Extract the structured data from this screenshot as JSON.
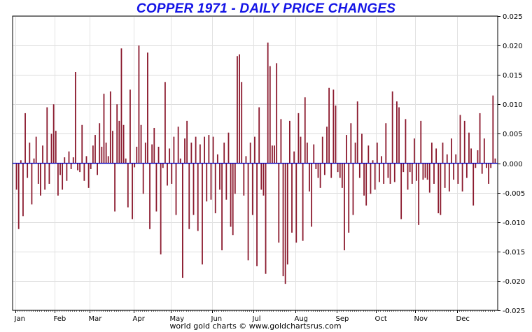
{
  "chart_data": {
    "type": "bar",
    "title": "COPPER 1971 - DAILY PRICE CHANGES",
    "footer": "world gold charts © www.goldchartsrus.com",
    "xlabel": "",
    "ylabel": "",
    "ylim": [
      -0.025,
      0.025
    ],
    "y_ticks": [
      "0.025",
      "0.020",
      "0.015",
      "0.010",
      "0.005",
      "0.000",
      "-0.005",
      "-0.010",
      "-0.015",
      "-0.020",
      "-0.025"
    ],
    "x_tick_labels": [
      "Jan",
      "Feb",
      "Mar",
      "Apr",
      "May",
      "Jun",
      "Jul",
      "Aug",
      "Sep",
      "Oct",
      "Nov",
      "Dec"
    ],
    "grid": true,
    "bar_color": "#8b1a2e",
    "zero_line_color": "#0000cc",
    "title_color": "#1414e6",
    "values": [
      -0.0045,
      -0.0112,
      0.0005,
      -0.009,
      0.0085,
      -0.0025,
      0.0035,
      -0.007,
      0.0008,
      0.0045,
      -0.0035,
      -0.0055,
      0.003,
      -0.0045,
      0.0095,
      -0.0035,
      0.005,
      0.01,
      0.0055,
      -0.0055,
      -0.002,
      -0.0045,
      0.001,
      -0.003,
      0.002,
      -0.001,
      0.001,
      0.0155,
      -0.0012,
      -0.0015,
      0.0065,
      -0.003,
      0.0012,
      -0.0042,
      -0.001,
      0.003,
      0.0048,
      -0.002,
      0.0068,
      0.0028,
      0.0118,
      0.0035,
      0.0012,
      0.0122,
      0.0055,
      -0.0082,
      0.01,
      0.0072,
      0.0195,
      0.0065,
      0.0008,
      -0.0075,
      0.0125,
      -0.0095,
      -0.0007,
      0.0028,
      0.02,
      0.0065,
      -0.0052,
      0.0035,
      0.0188,
      -0.0112,
      0.0032,
      0.006,
      -0.0082,
      0.0028,
      -0.0155,
      -0.0008,
      0.0138,
      -0.0038,
      0.0025,
      -0.0035,
      0.0045,
      -0.0088,
      0.0062,
      0.0008,
      -0.0195,
      0.0042,
      0.0072,
      -0.0112,
      0.0035,
      -0.0088,
      0.0045,
      -0.0115,
      0.0032,
      -0.0172,
      0.0045,
      -0.0065,
      0.0048,
      -0.0062,
      0.0045,
      -0.0085,
      0.0015,
      -0.0045,
      -0.0148,
      0.0035,
      -0.0062,
      0.0052,
      -0.0108,
      -0.0122,
      -0.0052,
      0.0182,
      0.0185,
      0.0138,
      -0.0055,
      0.0012,
      -0.0165,
      0.0035,
      -0.0088,
      0.0045,
      -0.0175,
      0.0095,
      -0.0045,
      -0.0055,
      -0.0188,
      0.0205,
      0.0165,
      0.003,
      0.003,
      0.017,
      -0.0135,
      0.0075,
      -0.0192,
      -0.0205,
      -0.0172,
      0.0072,
      -0.0118,
      0.002,
      -0.0135,
      0.0085,
      0.0045,
      -0.0132,
      0.0112,
      0.0035,
      -0.0048,
      -0.0108,
      0.0032,
      -0.001,
      -0.0025,
      -0.0042,
      0.0045,
      -0.002,
      0.0062,
      0.0128,
      -0.0025,
      0.0125,
      0.0098,
      -0.0015,
      -0.0025,
      -0.0042,
      -0.0148,
      0.0048,
      -0.0118,
      0.0068,
      -0.0088,
      0.0035,
      0.0105,
      -0.0025,
      0.005,
      -0.0055,
      -0.0072,
      0.003,
      -0.0052,
      0.0005,
      -0.0045,
      0.0035,
      -0.0032,
      0.0012,
      -0.0035,
      0.0068,
      -0.0025,
      -0.0035,
      0.0122,
      -0.0032,
      0.0105,
      0.0095,
      -0.0095,
      -0.0015,
      0.0075,
      -0.0045,
      -0.0015,
      -0.0035,
      0.0042,
      -0.003,
      -0.0105,
      0.0072,
      -0.0028,
      -0.0025,
      -0.0028,
      -0.005,
      0.0035,
      -0.0035,
      0.0025,
      -0.0085,
      -0.0088,
      0.0035,
      -0.0042,
      0.0015,
      -0.0048,
      0.0042,
      -0.0028,
      0.0015,
      -0.0035,
      0.0082,
      -0.0048,
      0.0072,
      -0.0025,
      0.0052,
      0.0025,
      -0.0072,
      -0.0008,
      0.0022,
      0.0085,
      -0.0018,
      0.0042,
      -0.0008,
      -0.0035,
      -0.0008,
      0.0115,
      0.0008
    ]
  }
}
